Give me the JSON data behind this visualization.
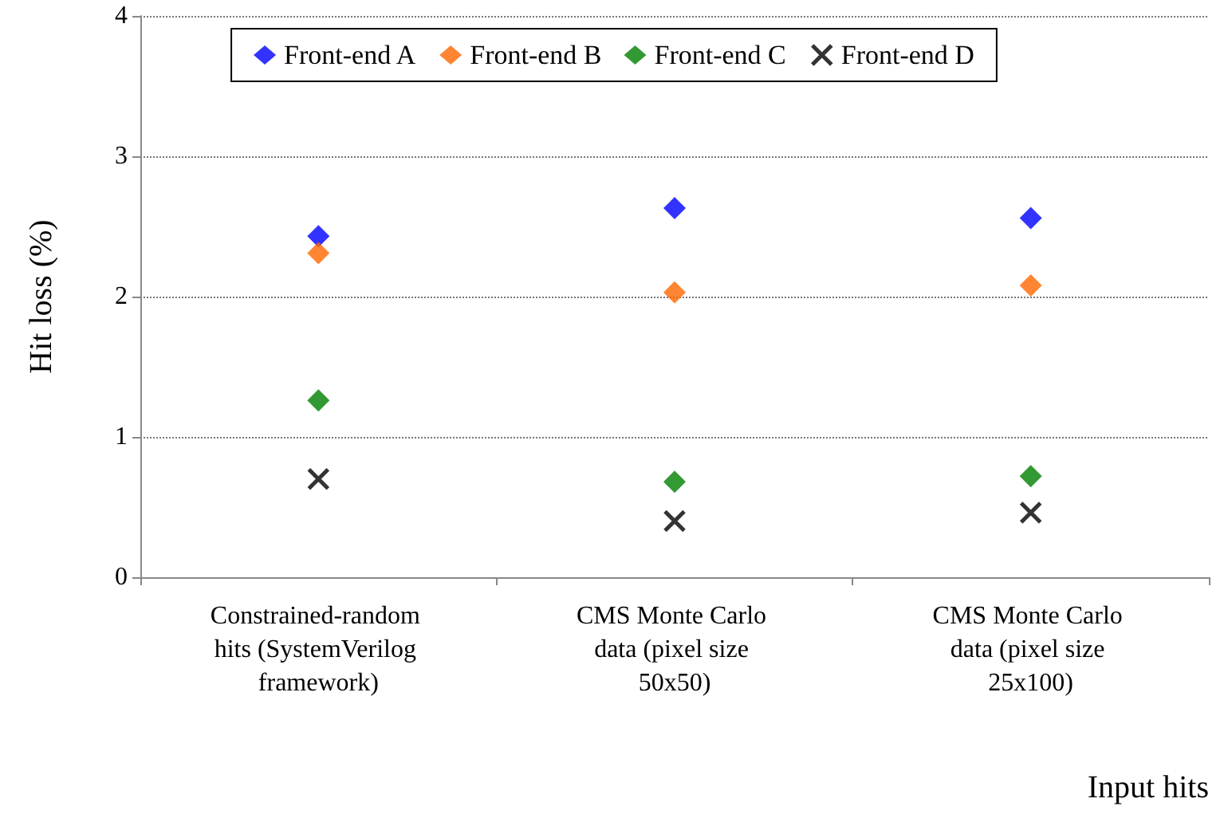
{
  "chart_data": {
    "type": "scatter",
    "xlabel": "Input hits",
    "ylabel": "Hit loss (%)",
    "categories": [
      "Constrained-random hits (SystemVerilog framework)",
      "CMS Monte Carlo data (pixel size 50x50)",
      "CMS Monte Carlo data (pixel size 25x100)"
    ],
    "series": [
      {
        "name": "Front-end A",
        "color": "#0000ff",
        "marker": "diamond",
        "values": [
          2.43,
          2.63,
          2.56
        ]
      },
      {
        "name": "Front-end B",
        "color": "#ff6600",
        "marker": "diamond",
        "values": [
          2.31,
          2.03,
          2.08
        ]
      },
      {
        "name": "Front-end C",
        "color": "#008000",
        "marker": "diamond",
        "values": [
          1.26,
          0.68,
          0.72
        ]
      },
      {
        "name": "Front-end D",
        "color": "#000000",
        "marker": "cross",
        "values": [
          0.7,
          0.4,
          0.46
        ]
      }
    ],
    "ylim": [
      0,
      4
    ],
    "yticks": [
      0,
      1,
      2,
      3,
      4
    ],
    "grid": "y",
    "legend": "top"
  }
}
